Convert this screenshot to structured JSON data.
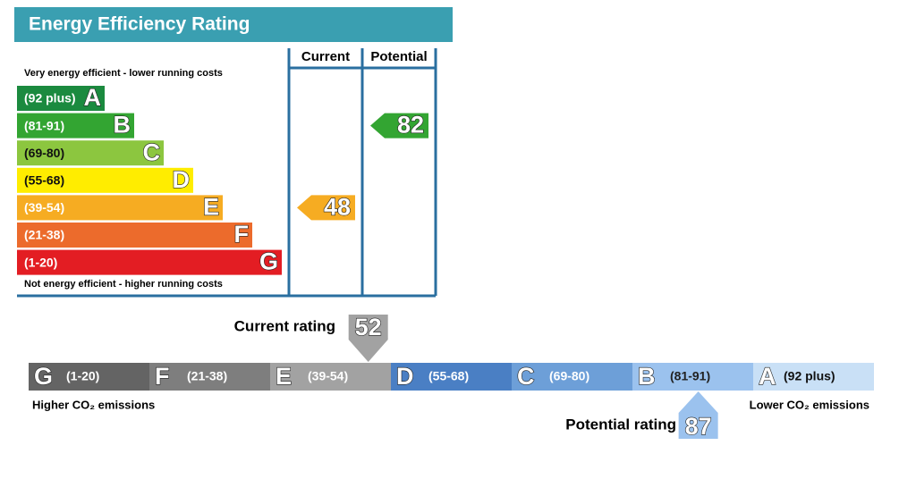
{
  "energy_efficiency": {
    "title": "Energy Efficiency Rating",
    "columns": [
      "Current",
      "Potential"
    ],
    "top_note": "Very energy efficient - lower running costs",
    "bottom_note": "Not energy efficient - higher running costs",
    "bands": [
      {
        "range": "(92 plus)",
        "letter": "A",
        "color": "#1b8a3f"
      },
      {
        "range": "(81-91)",
        "letter": "B",
        "color": "#33a532"
      },
      {
        "range": "(69-80)",
        "letter": "C",
        "color": "#8cc63f"
      },
      {
        "range": "(55-68)",
        "letter": "D",
        "color": "#ffed00"
      },
      {
        "range": "(39-54)",
        "letter": "E",
        "color": "#f6ac22"
      },
      {
        "range": "(21-38)",
        "letter": "F",
        "color": "#ec6b2c"
      },
      {
        "range": "(1-20)",
        "letter": "G",
        "color": "#e31d23"
      }
    ],
    "current": 48,
    "potential": 82
  },
  "environmental_impact": {
    "current_label": "Current rating",
    "current": 52,
    "potential_label": "Potential rating",
    "potential": 87,
    "left_note": "Higher CO₂ emissions",
    "right_note": "Lower CO₂ emissions",
    "bands": [
      {
        "range": "(1-20)",
        "letter": "G",
        "color": "#646464"
      },
      {
        "range": "(21-38)",
        "letter": "F",
        "color": "#7e7e7e"
      },
      {
        "range": "(39-54)",
        "letter": "E",
        "color": "#a2a2a2"
      },
      {
        "range": "(55-68)",
        "letter": "D",
        "color": "#4a7fc4"
      },
      {
        "range": "(69-80)",
        "letter": "C",
        "color": "#6d9fd8"
      },
      {
        "range": "(81-91)",
        "letter": "B",
        "color": "#9bc2ee"
      },
      {
        "range": "(92 plus)",
        "letter": "A",
        "color": "#c9e0f6"
      }
    ]
  }
}
